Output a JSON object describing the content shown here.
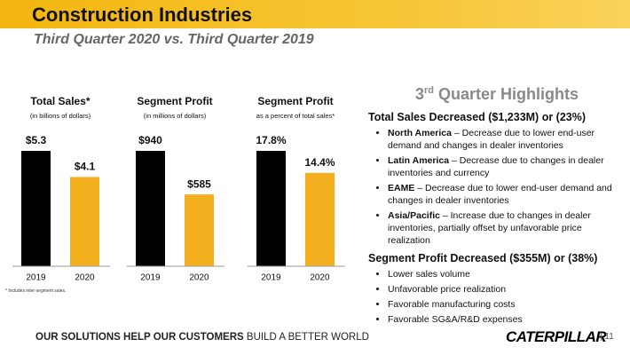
{
  "header": {
    "title": "Construction Industries",
    "subtitle": "Third Quarter 2020 vs. Third Quarter 2019"
  },
  "chart_data": [
    {
      "type": "bar",
      "title": "Total Sales*",
      "subtitle": "(in billions of dollars)",
      "categories": [
        "2019",
        "2020"
      ],
      "values": [
        5.3,
        4.1
      ],
      "value_labels": [
        "$5.3",
        "$4.1"
      ],
      "colors": [
        "#000000",
        "#f2ae1c"
      ]
    },
    {
      "type": "bar",
      "title": "Segment Profit",
      "subtitle": "(in millions of dollars)",
      "categories": [
        "2019",
        "2020"
      ],
      "values": [
        940,
        585
      ],
      "value_labels": [
        "$940",
        "$585"
      ],
      "colors": [
        "#000000",
        "#f2ae1c"
      ]
    },
    {
      "type": "bar",
      "title": "Segment Profit",
      "subtitle": "as a percent of total sales*",
      "categories": [
        "2019",
        "2020"
      ],
      "values": [
        17.8,
        14.4
      ],
      "value_labels": [
        "17.8%",
        "14.4%"
      ],
      "colors": [
        "#000000",
        "#f2ae1c"
      ]
    }
  ],
  "footnote": "* Includes inter-segment sales.",
  "highlights": {
    "title": {
      "number": "3",
      "ordinal": "rd",
      "text": " Quarter Highlights"
    },
    "sections": [
      {
        "heading": "Total Sales Decreased ($1,233M) or (23%)",
        "bullets": [
          {
            "bold": "North America",
            "text": " – Decrease due to lower end-user demand and changes in dealer inventories"
          },
          {
            "bold": "Latin America",
            "text": " – Decrease due to changes in dealer inventories and currency"
          },
          {
            "bold": "EAME",
            "text": " – Decrease due to lower end-user demand and changes in dealer inventories"
          },
          {
            "bold": "Asia/Pacific",
            "text": " – Increase due to changes in dealer inventories, partially offset by unfavorable price realization"
          }
        ]
      },
      {
        "heading": "Segment Profit Decreased ($355M) or (38%)",
        "bullets": [
          {
            "text": "Lower sales volume"
          },
          {
            "text": "Unfavorable price realization"
          },
          {
            "text": "Favorable manufacturing costs"
          },
          {
            "text": "Favorable SG&A/R&D expenses"
          }
        ]
      }
    ]
  },
  "footer": {
    "bold": "OUR SOLUTIONS HELP OUR CUSTOMERS",
    "text": " BUILD A BETTER WORLD",
    "logo": "CATERPILLAR",
    "page": "11"
  }
}
